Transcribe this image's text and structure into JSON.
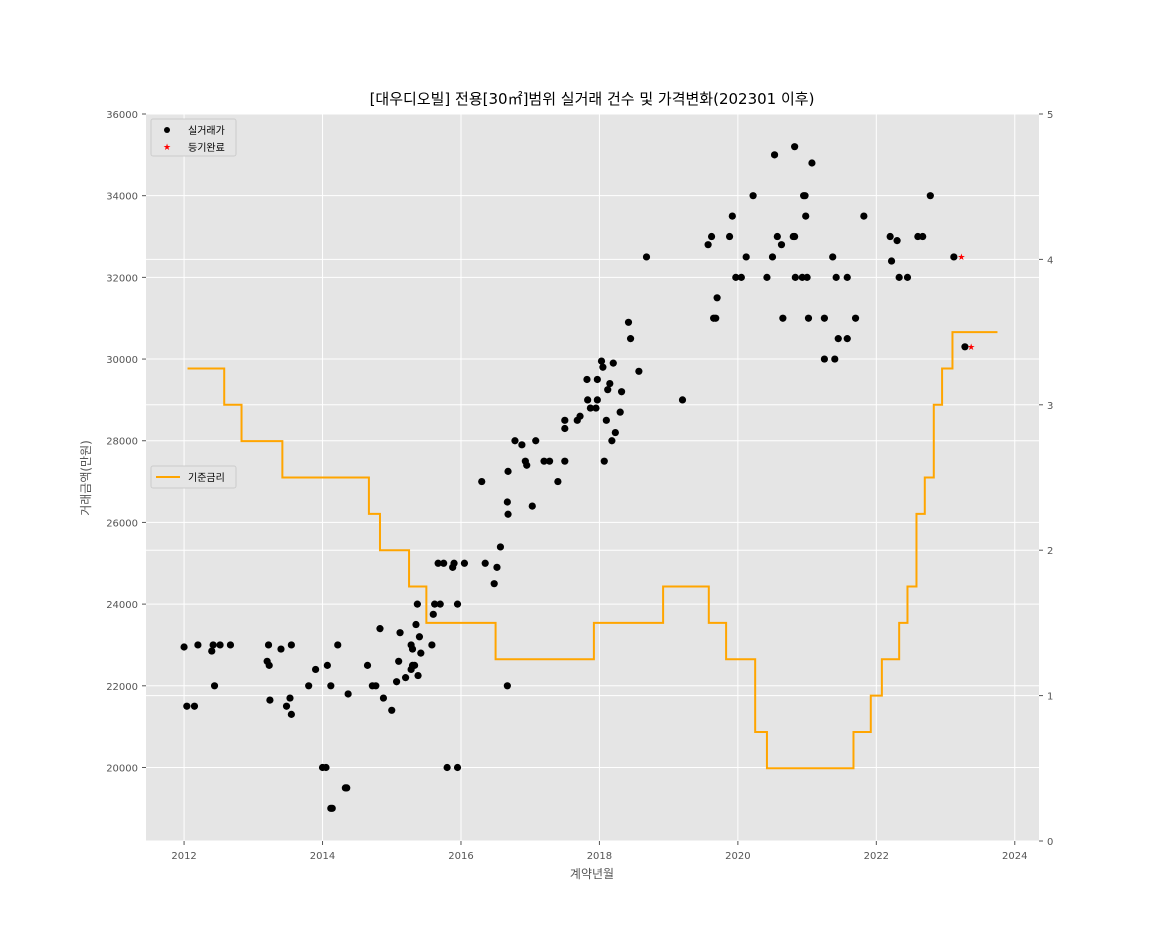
{
  "chart_data": {
    "type": "scatter",
    "title": "[대우디오빌] 전용[30㎡]범위 실거래 건수 및 가격변화(202301 이후)",
    "xlabel": "계약년월",
    "ylabel": "거래금액(만원)",
    "y2label": "",
    "xlim": [
      2011.45,
      2024.35
    ],
    "ylim": [
      18200,
      36000
    ],
    "y2lim": [
      0,
      5
    ],
    "x_ticks": [
      2012,
      2014,
      2016,
      2018,
      2020,
      2022,
      2024
    ],
    "y_ticks": [
      20000,
      22000,
      24000,
      26000,
      28000,
      30000,
      32000,
      34000,
      36000
    ],
    "y2_ticks": [
      0,
      1,
      2,
      3,
      4,
      5
    ],
    "grid": true,
    "background": "#e5e5e5",
    "legend_upper": "top-left",
    "legend_lower": "middle-left",
    "series": [
      {
        "name": "실거래가",
        "kind": "scatter",
        "marker": "circle",
        "color": "#000000",
        "points": [
          [
            2012.0,
            22950
          ],
          [
            2012.04,
            21500
          ],
          [
            2012.15,
            21500
          ],
          [
            2012.2,
            23000
          ],
          [
            2012.4,
            22850
          ],
          [
            2012.42,
            23000
          ],
          [
            2012.44,
            22000
          ],
          [
            2012.52,
            23000
          ],
          [
            2012.67,
            23000
          ],
          [
            2013.2,
            22600
          ],
          [
            2013.22,
            23000
          ],
          [
            2013.23,
            22500
          ],
          [
            2013.24,
            21650
          ],
          [
            2013.4,
            22900
          ],
          [
            2013.48,
            21500
          ],
          [
            2013.53,
            21700
          ],
          [
            2013.55,
            21300
          ],
          [
            2013.55,
            23000
          ],
          [
            2013.8,
            22000
          ],
          [
            2013.9,
            22400
          ],
          [
            2014.0,
            20000
          ],
          [
            2014.05,
            20000
          ],
          [
            2014.07,
            22500
          ],
          [
            2014.12,
            22000
          ],
          [
            2014.12,
            19000
          ],
          [
            2014.14,
            19000
          ],
          [
            2014.22,
            23000
          ],
          [
            2014.33,
            19500
          ],
          [
            2014.35,
            19500
          ],
          [
            2014.37,
            21800
          ],
          [
            2014.65,
            22500
          ],
          [
            2014.72,
            22000
          ],
          [
            2014.77,
            22000
          ],
          [
            2014.83,
            23400
          ],
          [
            2014.88,
            21700
          ],
          [
            2015.0,
            21400
          ],
          [
            2015.07,
            22100
          ],
          [
            2015.1,
            22600
          ],
          [
            2015.12,
            23300
          ],
          [
            2015.2,
            22200
          ],
          [
            2015.28,
            22400
          ],
          [
            2015.28,
            23000
          ],
          [
            2015.3,
            22500
          ],
          [
            2015.3,
            22900
          ],
          [
            2015.33,
            22500
          ],
          [
            2015.35,
            23500
          ],
          [
            2015.37,
            24000
          ],
          [
            2015.38,
            22250
          ],
          [
            2015.4,
            23200
          ],
          [
            2015.42,
            22800
          ],
          [
            2015.58,
            23000
          ],
          [
            2015.6,
            23750
          ],
          [
            2015.62,
            24000
          ],
          [
            2015.67,
            25000
          ],
          [
            2015.7,
            24000
          ],
          [
            2015.75,
            25000
          ],
          [
            2015.8,
            20000
          ],
          [
            2015.88,
            24900
          ],
          [
            2015.9,
            25000
          ],
          [
            2015.95,
            24000
          ],
          [
            2015.95,
            20000
          ],
          [
            2016.05,
            25000
          ],
          [
            2016.3,
            27000
          ],
          [
            2016.35,
            25000
          ],
          [
            2016.48,
            24500
          ],
          [
            2016.52,
            24900
          ],
          [
            2016.57,
            25400
          ],
          [
            2016.67,
            22000
          ],
          [
            2016.67,
            26500
          ],
          [
            2016.68,
            26200
          ],
          [
            2016.68,
            27250
          ],
          [
            2016.78,
            28000
          ],
          [
            2016.88,
            27900
          ],
          [
            2016.93,
            27500
          ],
          [
            2016.95,
            27400
          ],
          [
            2017.03,
            26400
          ],
          [
            2017.08,
            28000
          ],
          [
            2017.2,
            27500
          ],
          [
            2017.28,
            27500
          ],
          [
            2017.4,
            27000
          ],
          [
            2017.5,
            28500
          ],
          [
            2017.5,
            28300
          ],
          [
            2017.5,
            27500
          ],
          [
            2017.68,
            28500
          ],
          [
            2017.72,
            28600
          ],
          [
            2017.82,
            29500
          ],
          [
            2017.83,
            29000
          ],
          [
            2017.87,
            28800
          ],
          [
            2017.95,
            28800
          ],
          [
            2017.97,
            29500
          ],
          [
            2017.97,
            29000
          ],
          [
            2018.03,
            29950
          ],
          [
            2018.05,
            29800
          ],
          [
            2018.07,
            27500
          ],
          [
            2018.1,
            28500
          ],
          [
            2018.12,
            29250
          ],
          [
            2018.15,
            29400
          ],
          [
            2018.18,
            28000
          ],
          [
            2018.2,
            29900
          ],
          [
            2018.23,
            28200
          ],
          [
            2018.3,
            28700
          ],
          [
            2018.32,
            29200
          ],
          [
            2018.42,
            30900
          ],
          [
            2018.45,
            30500
          ],
          [
            2018.57,
            29700
          ],
          [
            2018.68,
            32500
          ],
          [
            2019.2,
            29000
          ],
          [
            2019.57,
            32800
          ],
          [
            2019.62,
            33000
          ],
          [
            2019.65,
            31000
          ],
          [
            2019.68,
            31000
          ],
          [
            2019.7,
            31500
          ],
          [
            2019.88,
            33000
          ],
          [
            2019.92,
            33500
          ],
          [
            2019.97,
            32000
          ],
          [
            2020.05,
            32000
          ],
          [
            2020.12,
            32500
          ],
          [
            2020.22,
            34000
          ],
          [
            2020.42,
            32000
          ],
          [
            2020.5,
            32500
          ],
          [
            2020.53,
            35000
          ],
          [
            2020.57,
            33000
          ],
          [
            2020.63,
            32800
          ],
          [
            2020.65,
            31000
          ],
          [
            2020.8,
            33000
          ],
          [
            2020.82,
            35200
          ],
          [
            2020.82,
            33000
          ],
          [
            2020.83,
            32000
          ],
          [
            2020.93,
            32000
          ],
          [
            2020.95,
            34000
          ],
          [
            2020.97,
            34000
          ],
          [
            2020.98,
            33500
          ],
          [
            2021.0,
            32000
          ],
          [
            2021.02,
            31000
          ],
          [
            2021.07,
            34800
          ],
          [
            2021.25,
            30000
          ],
          [
            2021.25,
            31000
          ],
          [
            2021.37,
            32500
          ],
          [
            2021.4,
            30000
          ],
          [
            2021.42,
            32000
          ],
          [
            2021.45,
            30500
          ],
          [
            2021.58,
            32000
          ],
          [
            2021.58,
            30500
          ],
          [
            2021.7,
            31000
          ],
          [
            2021.82,
            33500
          ],
          [
            2022.2,
            33000
          ],
          [
            2022.22,
            32400
          ],
          [
            2022.3,
            32900
          ],
          [
            2022.33,
            32000
          ],
          [
            2022.45,
            32000
          ],
          [
            2022.6,
            33000
          ],
          [
            2022.67,
            33000
          ],
          [
            2022.78,
            34000
          ],
          [
            2023.12,
            32500
          ],
          [
            2023.28,
            30300
          ]
        ]
      },
      {
        "name": "등기완료",
        "kind": "scatter",
        "marker": "star",
        "color": "#ff0000",
        "points": [
          [
            2023.23,
            32500
          ],
          [
            2023.37,
            30300
          ]
        ]
      },
      {
        "name": "기준금리",
        "kind": "step",
        "axis": "right",
        "color": "#ffa500",
        "points": [
          [
            2012.05,
            3.25
          ],
          [
            2012.58,
            3.0
          ],
          [
            2012.83,
            2.75
          ],
          [
            2013.42,
            2.5
          ],
          [
            2014.67,
            2.25
          ],
          [
            2014.83,
            2.0
          ],
          [
            2015.25,
            1.75
          ],
          [
            2015.5,
            1.5
          ],
          [
            2016.5,
            1.25
          ],
          [
            2017.92,
            1.5
          ],
          [
            2018.92,
            1.75
          ],
          [
            2019.58,
            1.5
          ],
          [
            2019.83,
            1.25
          ],
          [
            2020.25,
            0.75
          ],
          [
            2020.42,
            0.5
          ],
          [
            2021.67,
            0.75
          ],
          [
            2021.92,
            1.0
          ],
          [
            2022.08,
            1.25
          ],
          [
            2022.33,
            1.5
          ],
          [
            2022.45,
            1.75
          ],
          [
            2022.58,
            2.25
          ],
          [
            2022.7,
            2.5
          ],
          [
            2022.83,
            3.0
          ],
          [
            2022.95,
            3.25
          ],
          [
            2023.1,
            3.5
          ],
          [
            2023.75,
            3.5
          ]
        ]
      }
    ]
  }
}
